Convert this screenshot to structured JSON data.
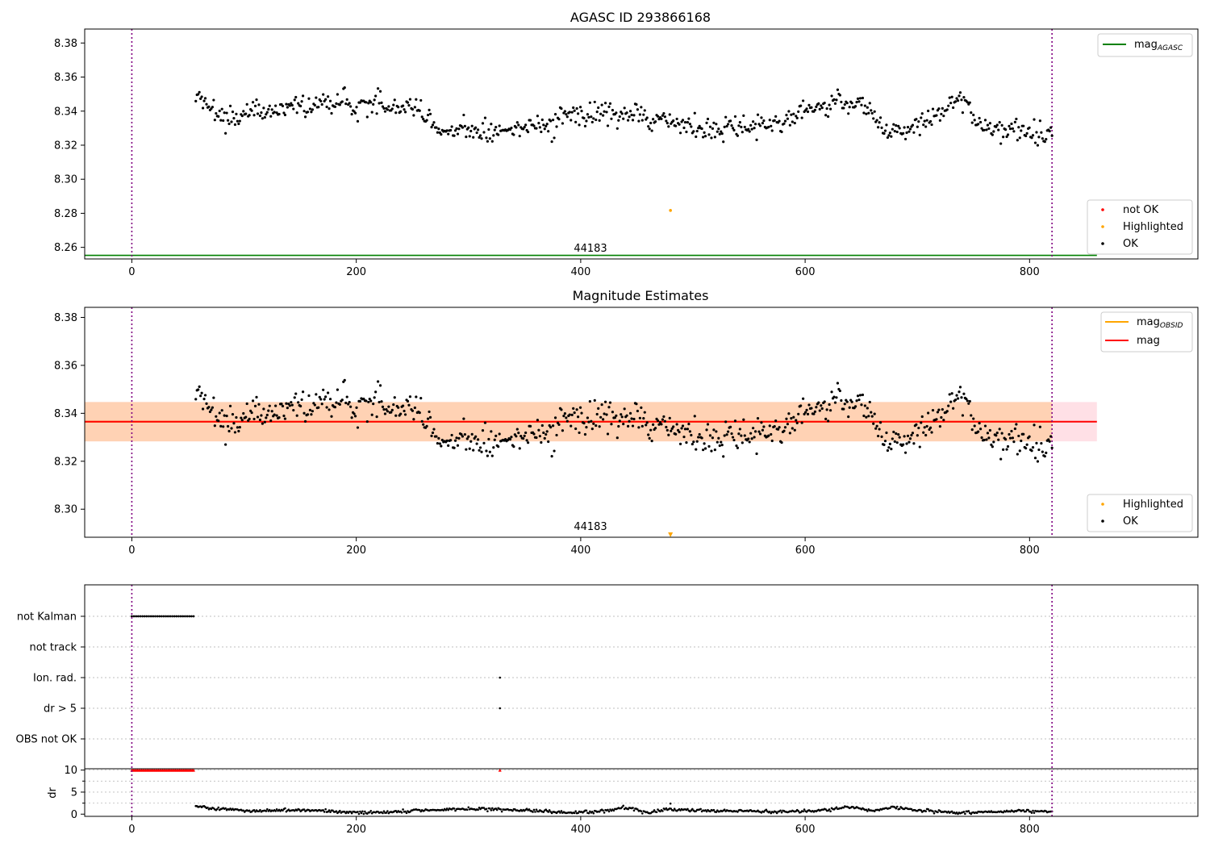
{
  "chart_data": [
    {
      "type": "scatter",
      "title": "AGASC ID 293866168",
      "xlim": [
        -42,
        950
      ],
      "ylim": [
        8.2532,
        8.3882
      ],
      "xticks": [
        0,
        200,
        400,
        600,
        800
      ],
      "yticks": [
        8.26,
        8.28,
        8.3,
        8.32,
        8.34,
        8.36,
        8.38
      ],
      "ytick_labels": [
        "8.26",
        "8.28",
        "8.30",
        "8.32",
        "8.34",
        "8.36",
        "8.38"
      ],
      "vlines": [
        0,
        820
      ],
      "obsid_label": {
        "text": "44183",
        "x": 410
      },
      "lines": [
        {
          "name": "mag_AGASC",
          "y": 8.2553,
          "x_range": [
            -42,
            860
          ],
          "color": "#008000"
        }
      ],
      "highlighted": [
        {
          "x": 480,
          "y": 8.2817
        }
      ],
      "not_ok": [],
      "legend_upper": {
        "placement": "upper-right",
        "entries": [
          {
            "base": "mag",
            "sub": "AGASC",
            "color": "#008000"
          }
        ]
      },
      "legend_lower": {
        "placement": "lower-right",
        "entries": [
          {
            "label": "not OK",
            "color": "#ff0000"
          },
          {
            "label": "Highlighted",
            "color": "#ffa500"
          },
          {
            "label": "OK",
            "color": "#000000"
          }
        ]
      },
      "ok_series": {
        "x_range": [
          57,
          820
        ],
        "anchors": [
          [
            57,
            8.347
          ],
          [
            65,
            8.345
          ],
          [
            80,
            8.338
          ],
          [
            95,
            8.336
          ],
          [
            110,
            8.342
          ],
          [
            125,
            8.338
          ],
          [
            140,
            8.344
          ],
          [
            150,
            8.345
          ],
          [
            160,
            8.338
          ],
          [
            170,
            8.346
          ],
          [
            180,
            8.344
          ],
          [
            190,
            8.349
          ],
          [
            200,
            8.34
          ],
          [
            210,
            8.344
          ],
          [
            220,
            8.346
          ],
          [
            230,
            8.337
          ],
          [
            240,
            8.342
          ],
          [
            255,
            8.341
          ],
          [
            265,
            8.335
          ],
          [
            275,
            8.325
          ],
          [
            285,
            8.327
          ],
          [
            300,
            8.331
          ],
          [
            315,
            8.326
          ],
          [
            330,
            8.328
          ],
          [
            345,
            8.33
          ],
          [
            360,
            8.334
          ],
          [
            375,
            8.333
          ],
          [
            390,
            8.339
          ],
          [
            405,
            8.337
          ],
          [
            420,
            8.339
          ],
          [
            435,
            8.337
          ],
          [
            450,
            8.34
          ],
          [
            460,
            8.331
          ],
          [
            470,
            8.338
          ],
          [
            480,
            8.335
          ],
          [
            490,
            8.333
          ],
          [
            500,
            8.331
          ],
          [
            515,
            8.329
          ],
          [
            525,
            8.33
          ],
          [
            540,
            8.331
          ],
          [
            555,
            8.333
          ],
          [
            570,
            8.333
          ],
          [
            585,
            8.335
          ],
          [
            600,
            8.34
          ],
          [
            615,
            8.344
          ],
          [
            630,
            8.347
          ],
          [
            640,
            8.342
          ],
          [
            655,
            8.343
          ],
          [
            665,
            8.331
          ],
          [
            675,
            8.327
          ],
          [
            690,
            8.331
          ],
          [
            705,
            8.335
          ],
          [
            720,
            8.336
          ],
          [
            735,
            8.349
          ],
          [
            745,
            8.344
          ],
          [
            755,
            8.332
          ],
          [
            770,
            8.33
          ],
          [
            785,
            8.328
          ],
          [
            800,
            8.33
          ],
          [
            815,
            8.326
          ],
          [
            820,
            8.33
          ]
        ],
        "scatter": 0.006,
        "count": 720,
        "color": "#000000"
      }
    },
    {
      "type": "scatter",
      "title": "Magnitude Estimates",
      "xlim": [
        -42,
        950
      ],
      "ylim": [
        8.2883,
        8.3842
      ],
      "xticks": [
        0,
        200,
        400,
        600,
        800
      ],
      "yticks": [
        8.3,
        8.32,
        8.34,
        8.36,
        8.38
      ],
      "ytick_labels": [
        "8.30",
        "8.32",
        "8.34",
        "8.36",
        "8.38"
      ],
      "vlines": [
        0,
        820
      ],
      "obsid_label": {
        "text": "44183",
        "x": 410
      },
      "mag": 8.3365,
      "mag_band": [
        8.3283,
        8.3447
      ],
      "mag_obsid": 8.3365,
      "mag_obsid_band": [
        8.3283,
        8.3447
      ],
      "band_x_range": [
        -42,
        860
      ],
      "obsid_x_range": [
        -42,
        820
      ],
      "highlighted": [
        {
          "x": 480,
          "y": 8.2893,
          "marker": "down-triangle"
        }
      ],
      "legend_upper": {
        "placement": "upper-right",
        "entries": [
          {
            "base": "mag",
            "sub": "OBSID",
            "color": "#ffa500"
          },
          {
            "label": "mag",
            "color": "#ff0000"
          }
        ]
      },
      "legend_lower": {
        "placement": "lower-right",
        "entries": [
          {
            "label": "Highlighted",
            "color": "#ffa500"
          },
          {
            "label": "OK",
            "color": "#000000"
          }
        ]
      }
    },
    {
      "type": "scatter",
      "title": "",
      "xlim": [
        -42,
        950
      ],
      "xticks": [
        0,
        200,
        400,
        600,
        800
      ],
      "vlines": [
        0,
        820
      ],
      "flag_rows": [
        {
          "label": "not Kalman",
          "points": {
            "x_range": [
              0,
              55
            ],
            "count": 30
          }
        },
        {
          "label": "not track",
          "points": null
        },
        {
          "label": "Ion. rad.",
          "points": {
            "x": [
              328
            ]
          }
        },
        {
          "label": "dr > 5",
          "points": {
            "x": [
              328
            ]
          }
        },
        {
          "label": "OBS not OK",
          "points": null
        }
      ],
      "dr_panel": {
        "ylabel": "dr",
        "ylim": [
          -0.5,
          10.3
        ],
        "yticks": [
          0,
          5,
          10
        ],
        "ytick_labels": [
          "0",
          "5",
          "10"
        ],
        "clipped_at_10": {
          "x_range": [
            0,
            55
          ],
          "count": 45,
          "extra_x": [
            328
          ],
          "color": "#ff0000",
          "marker": "up-triangle"
        },
        "series": {
          "x_range": [
            57,
            820
          ],
          "count": 720,
          "anchors": [
            [
              57,
              1.7
            ],
            [
              70,
              1.3
            ],
            [
              90,
              1.1
            ],
            [
              110,
              0.6
            ],
            [
              130,
              0.9
            ],
            [
              160,
              0.9
            ],
            [
              180,
              0.6
            ],
            [
              220,
              0.4
            ],
            [
              250,
              0.8
            ],
            [
              280,
              1.1
            ],
            [
              310,
              1.3
            ],
            [
              335,
              1.0
            ],
            [
              360,
              0.8
            ],
            [
              380,
              0.4
            ],
            [
              410,
              0.4
            ],
            [
              440,
              1.5
            ],
            [
              460,
              0.3
            ],
            [
              480,
              1.1
            ],
            [
              510,
              0.8
            ],
            [
              540,
              0.7
            ],
            [
              580,
              0.5
            ],
            [
              610,
              0.8
            ],
            [
              640,
              1.6
            ],
            [
              660,
              0.8
            ],
            [
              680,
              1.6
            ],
            [
              700,
              0.9
            ],
            [
              735,
              0.3
            ],
            [
              760,
              0.5
            ],
            [
              790,
              0.7
            ],
            [
              820,
              0.6
            ]
          ],
          "outliers": [
            [
              480,
              2.4
            ]
          ],
          "color": "#000000"
        }
      }
    }
  ],
  "colors": {
    "ok": "#000000",
    "not_ok": "#ff0000",
    "highlighted": "#ffa500",
    "vline": "#800080",
    "agasc": "#008000",
    "band_obsid": "#ffd2b4",
    "band_mag": "#ffe0e6"
  }
}
